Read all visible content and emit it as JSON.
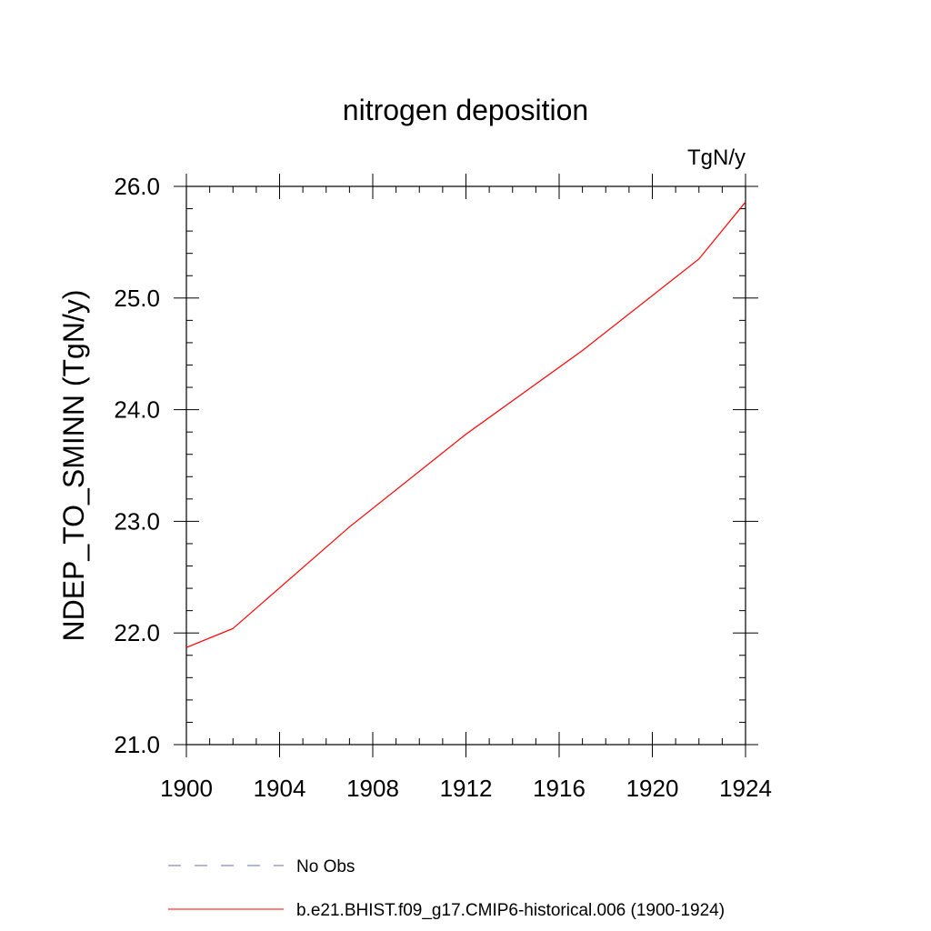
{
  "chart_data": {
    "type": "line",
    "title": "nitrogen deposition",
    "units_label": "TgN/y",
    "ylabel": "NDEP_TO_SMINN  (TgN/y)",
    "xlabel": "",
    "xlim": [
      1900,
      1924
    ],
    "ylim": [
      21.0,
      26.0
    ],
    "x_ticks": [
      1900,
      1904,
      1908,
      1912,
      1916,
      1920,
      1924
    ],
    "x_tick_labels": [
      "1900",
      "1904",
      "1908",
      "1912",
      "1916",
      "1920",
      "1924"
    ],
    "y_ticks": [
      21.0,
      22.0,
      23.0,
      24.0,
      25.0,
      26.0
    ],
    "y_tick_labels": [
      "21.0",
      "22.0",
      "23.0",
      "24.0",
      "25.0",
      "26.0"
    ],
    "x_minor_step": 1,
    "y_minor_step": 0.2,
    "series": [
      {
        "name": "b.e21.BHIST.f09_g17.CMIP6-historical.006 (1900-1924)",
        "color": "#ff0000",
        "dash": "solid",
        "x": [
          1900,
          1902,
          1907,
          1912,
          1917,
          1922,
          1924
        ],
        "values": [
          21.87,
          22.04,
          22.95,
          23.78,
          24.53,
          25.35,
          25.86
        ]
      }
    ],
    "legend": [
      {
        "label": "No Obs",
        "color": "#6b6bb3",
        "dash": "dashed"
      },
      {
        "label": "b.e21.BHIST.f09_g17.CMIP6-historical.006 (1900-1924)",
        "color": "#ff0000",
        "dash": "solid"
      }
    ],
    "legend_position": "bottom",
    "grid": false
  }
}
